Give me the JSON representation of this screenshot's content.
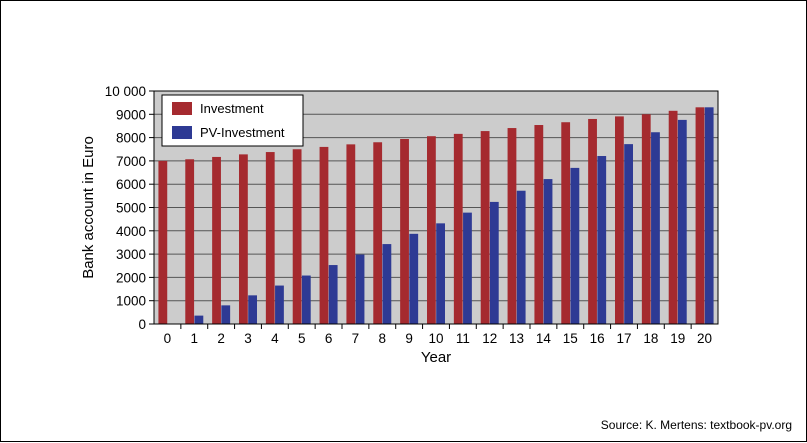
{
  "chart_data": {
    "type": "bar",
    "title": "",
    "xlabel": "Year",
    "ylabel": "Bank account in Euro",
    "categories": [
      "0",
      "1",
      "2",
      "3",
      "4",
      "5",
      "6",
      "7",
      "8",
      "9",
      "10",
      "11",
      "12",
      "13",
      "14",
      "15",
      "16",
      "17",
      "18",
      "19",
      "20"
    ],
    "series": [
      {
        "name": "Investment",
        "color": "#a52a2f",
        "values": [
          7000,
          7070,
          7170,
          7280,
          7380,
          7500,
          7600,
          7710,
          7800,
          7940,
          8060,
          8160,
          8280,
          8410,
          8540,
          8660,
          8800,
          8910,
          9000,
          9150,
          9300
        ]
      },
      {
        "name": "PV-Investment",
        "color": "#2e3a94",
        "values": [
          0,
          360,
          800,
          1230,
          1650,
          2080,
          2530,
          2980,
          3430,
          3870,
          4320,
          4780,
          5240,
          5720,
          6220,
          6700,
          7210,
          7720,
          8230,
          8760,
          9300
        ]
      }
    ],
    "ylim": [
      0,
      10000
    ],
    "yticks": [
      0,
      1000,
      2000,
      3000,
      4000,
      5000,
      6000,
      7000,
      8000,
      9000,
      10000
    ],
    "ytick_labels": [
      "0",
      "1000",
      "2000",
      "3000",
      "4000",
      "5000",
      "6000",
      "7000",
      "8000",
      "9000",
      "10 000"
    ],
    "grid": true,
    "legend_position": "top-left",
    "plot_background": "#cccccc"
  },
  "source_note": "Source: K. Mertens: textbook-pv.org"
}
